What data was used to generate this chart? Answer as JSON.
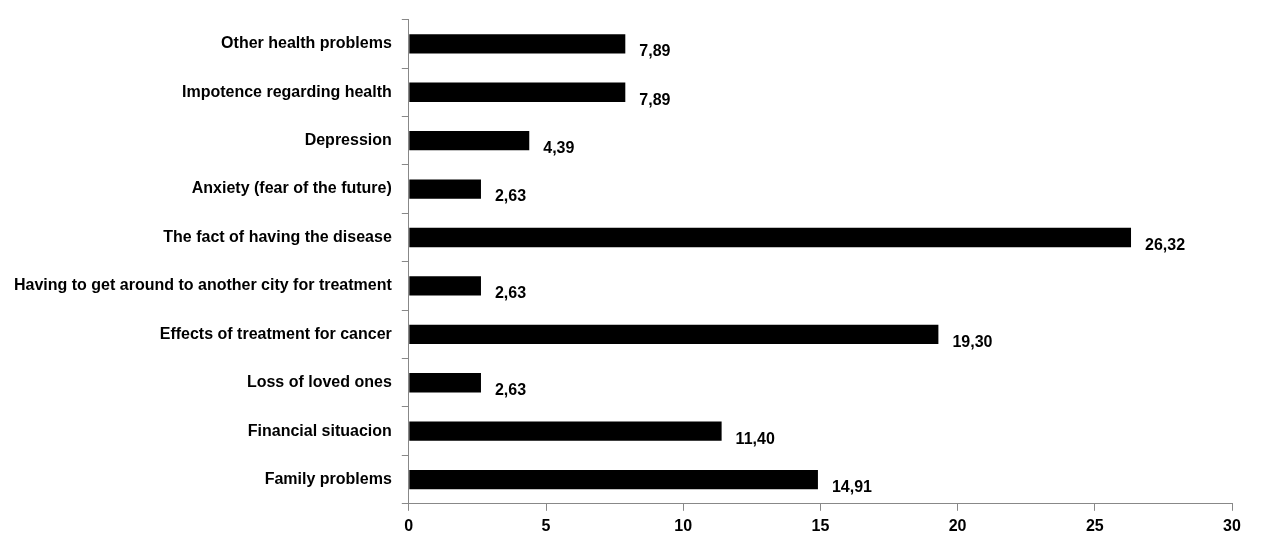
{
  "chart_data": {
    "type": "bar",
    "orientation": "horizontal",
    "categories": [
      "Other health problems",
      "Impotence regarding health",
      "Depression",
      "Anxiety (fear of the future)",
      "The fact of having the disease",
      "Having to get around to another city for treatment",
      "Effects of treatment for cancer",
      "Loss of loved ones",
      "Financial situacion",
      "Family problems"
    ],
    "values": [
      7.89,
      7.89,
      4.39,
      2.63,
      26.32,
      2.63,
      19.3,
      2.63,
      11.4,
      14.91
    ],
    "value_labels": [
      "7,89",
      "7,89",
      "4,39",
      "2,63",
      "26,32",
      "2,63",
      "19,30",
      "2,63",
      "11,40",
      "14,91"
    ],
    "color": "#000000",
    "xlim": [
      0,
      30
    ],
    "xticks": [
      0,
      5,
      10,
      15,
      20,
      25,
      30
    ],
    "legend": false
  }
}
